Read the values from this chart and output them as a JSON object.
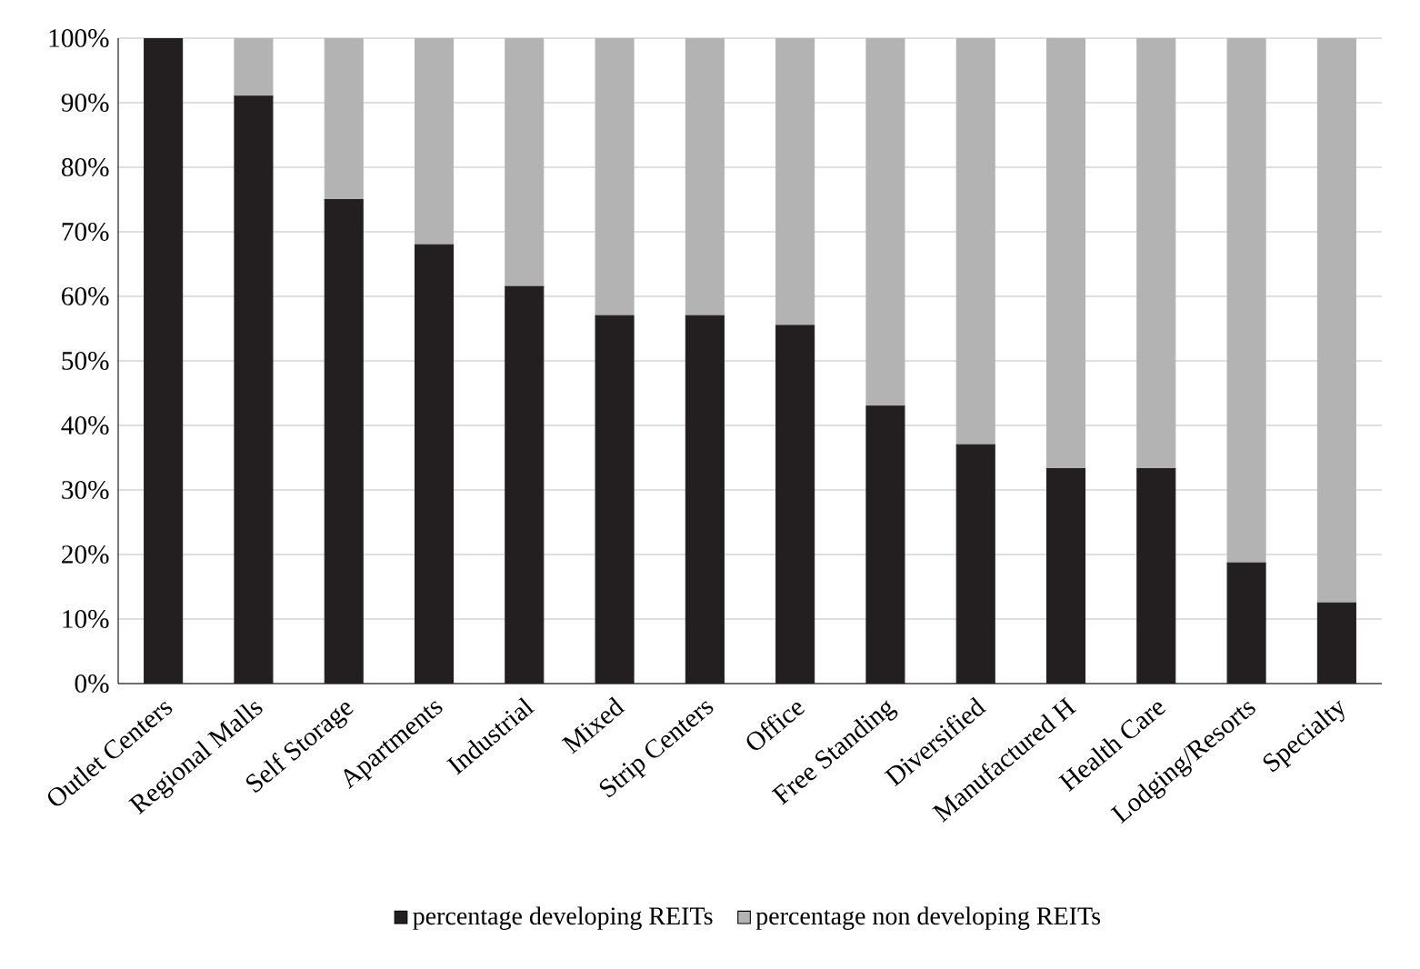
{
  "chart_data": {
    "type": "bar",
    "stacked": true,
    "categories": [
      "Outlet Centers",
      "Regional Malls",
      "Self Storage",
      "Apartments",
      "Industrial",
      "Mixed",
      "Strip Centers",
      "Office",
      "Free Standing",
      "Diversified",
      "Manufactured H",
      "Health Care",
      "Lodging/Resorts",
      "Specialty"
    ],
    "series": [
      {
        "name": "percentage developing REITs",
        "color": "#231f20",
        "values": [
          100,
          91,
          75,
          68,
          61.5,
          57,
          57,
          55.5,
          43,
          37,
          33.3,
          33.3,
          18.7,
          12.5
        ]
      },
      {
        "name": "percentage non developing REITs",
        "color": "#b3b3b3",
        "values": [
          0,
          9,
          25,
          32,
          38.5,
          43,
          43,
          44.5,
          57,
          63,
          66.7,
          66.7,
          81.3,
          87.5
        ]
      }
    ],
    "ylim": [
      0,
      100
    ],
    "yticks": [
      {
        "value": 0,
        "label": "0%"
      },
      {
        "value": 10,
        "label": "10%"
      },
      {
        "value": 20,
        "label": "20%"
      },
      {
        "value": 30,
        "label": "30%"
      },
      {
        "value": 40,
        "label": "40%"
      },
      {
        "value": 50,
        "label": "50%"
      },
      {
        "value": 60,
        "label": "60%"
      },
      {
        "value": 70,
        "label": "70%"
      },
      {
        "value": 80,
        "label": "80%"
      },
      {
        "value": 90,
        "label": "90%"
      },
      {
        "value": 100,
        "label": "100%"
      }
    ],
    "grid": "y",
    "legend": "bottom"
  }
}
